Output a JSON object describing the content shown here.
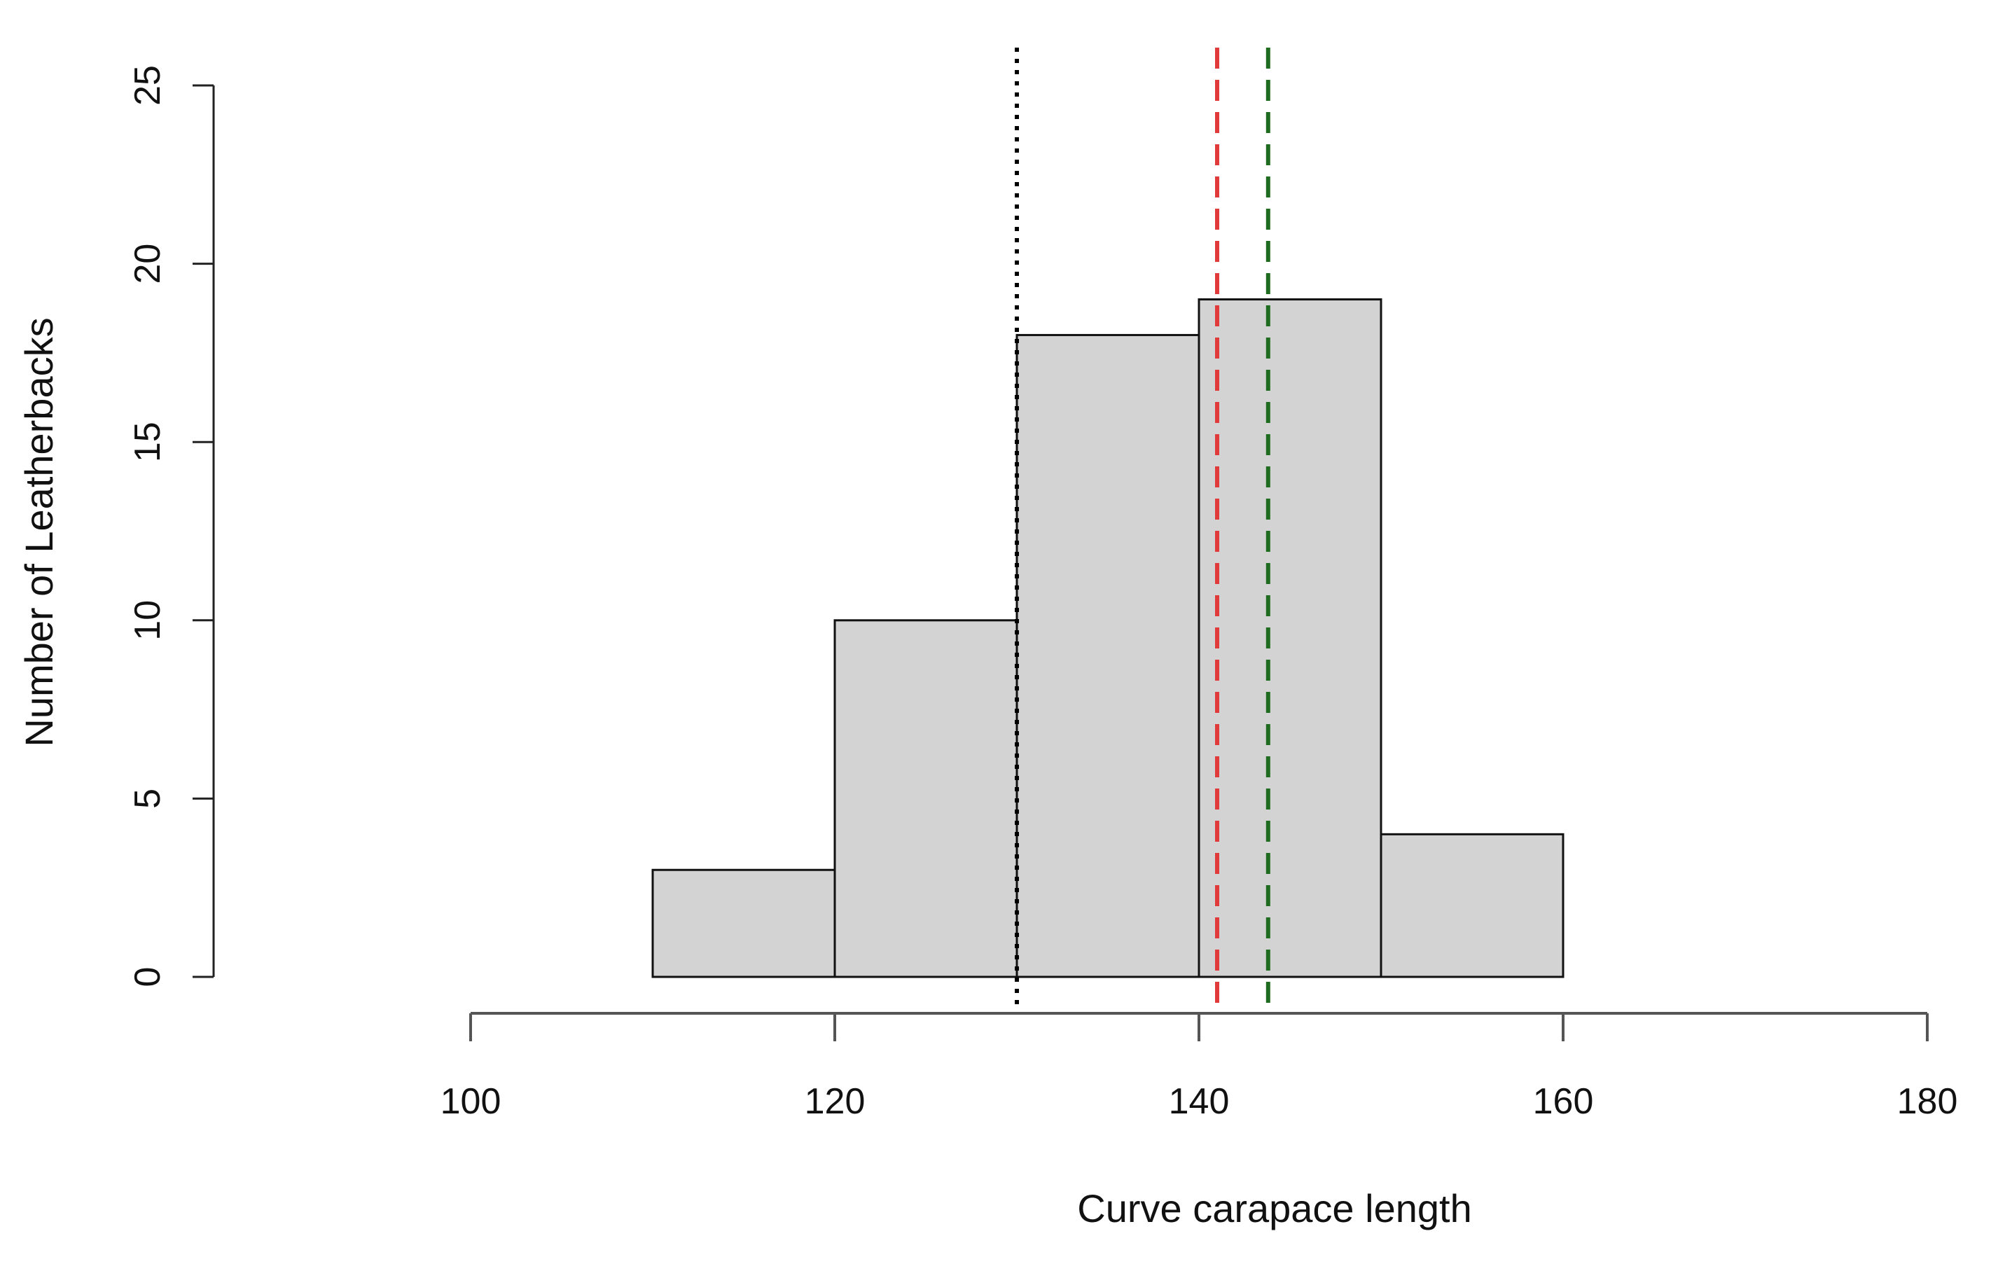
{
  "chart_data": {
    "type": "bar",
    "subtype": "histogram",
    "xlabel": "Curve carapace length",
    "ylabel": "Number of Leatherbacks",
    "bin_edges": [
      110,
      120,
      130,
      140,
      150,
      160
    ],
    "values": [
      3,
      10,
      18,
      19,
      4
    ],
    "xlim": [
      100,
      180
    ],
    "ylim": [
      0,
      25
    ],
    "x_ticks": [
      "100",
      "120",
      "140",
      "160",
      "180"
    ],
    "y_ticks": [
      "0",
      "5",
      "10",
      "15",
      "20",
      "25"
    ],
    "grid": false,
    "bar_color": "#d3d3d3",
    "reference_lines": [
      {
        "x": 130,
        "color": "#000000",
        "style": "dotted"
      },
      {
        "x": 141,
        "color": "#e03a3a",
        "style": "dashed"
      },
      {
        "x": 143.8,
        "color": "#1f6b1f",
        "style": "dashed"
      }
    ]
  }
}
